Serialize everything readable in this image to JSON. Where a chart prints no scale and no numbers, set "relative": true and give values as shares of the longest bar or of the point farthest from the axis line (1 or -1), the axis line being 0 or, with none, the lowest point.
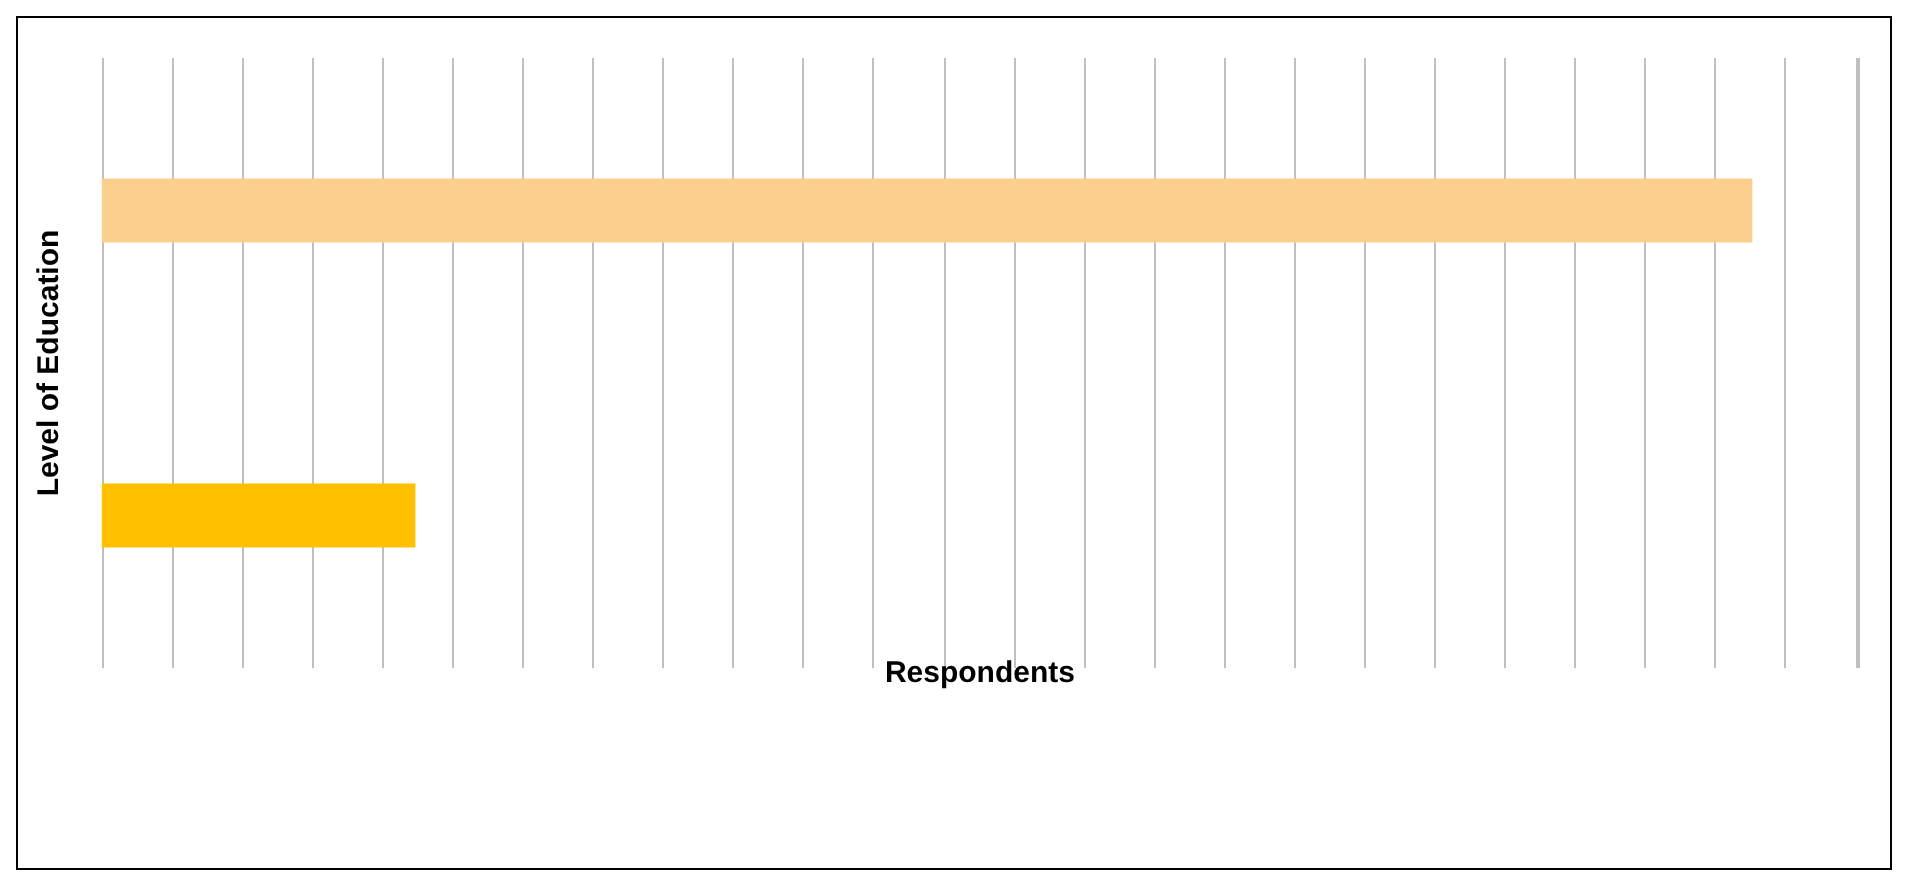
{
  "chart_data": {
    "type": "bar",
    "orientation": "horizontal",
    "relative": true,
    "xlabel": "Respondents",
    "ylabel": "Level of Education",
    "categories": [
      null,
      null
    ],
    "values": [
      1,
      0.19
    ],
    "colors": [
      "#fbd08e",
      "#ffc000"
    ],
    "grid": "x"
  }
}
